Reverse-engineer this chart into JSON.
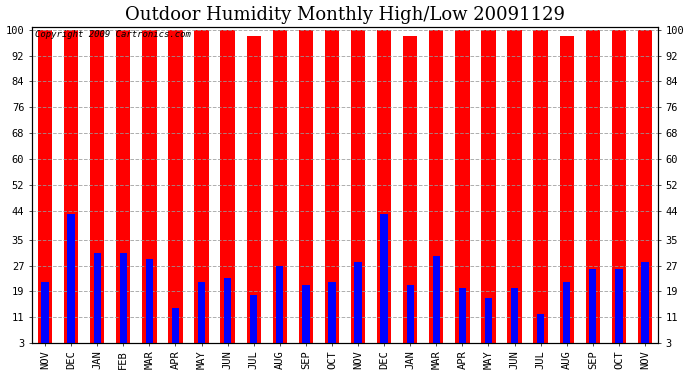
{
  "title": "Outdoor Humidity Monthly High/Low 20091129",
  "copyright": "Copyright 2009 Cartronics.com",
  "months": [
    "NOV",
    "DEC",
    "JAN",
    "FEB",
    "MAR",
    "APR",
    "MAY",
    "JUN",
    "JUL",
    "AUG",
    "SEP",
    "OCT",
    "NOV",
    "DEC",
    "JAN",
    "MAR",
    "APR",
    "MAY",
    "JUN",
    "JUL",
    "AUG",
    "SEP",
    "OCT",
    "NOV"
  ],
  "highs": [
    100,
    100,
    100,
    100,
    100,
    100,
    100,
    100,
    98,
    100,
    100,
    100,
    100,
    100,
    98,
    100,
    100,
    100,
    100,
    100,
    98,
    100,
    100,
    100
  ],
  "lows": [
    22,
    43,
    31,
    31,
    29,
    14,
    22,
    23,
    18,
    27,
    21,
    22,
    28,
    43,
    21,
    30,
    20,
    17,
    20,
    12,
    22,
    26,
    26,
    28
  ],
  "bar_color_high": "#ff0000",
  "bar_color_low": "#0000ff",
  "bg_color": "#ffffff",
  "plot_bg_color": "#ffffff",
  "grid_color": "#999999",
  "yticks": [
    3,
    11,
    19,
    27,
    35,
    44,
    52,
    60,
    68,
    76,
    84,
    92,
    100
  ],
  "ymin": 3,
  "ymax": 100,
  "title_fontsize": 13,
  "tick_fontsize": 7.5,
  "copyright_fontsize": 6.5,
  "red_bar_width": 0.55,
  "blue_bar_width": 0.28
}
